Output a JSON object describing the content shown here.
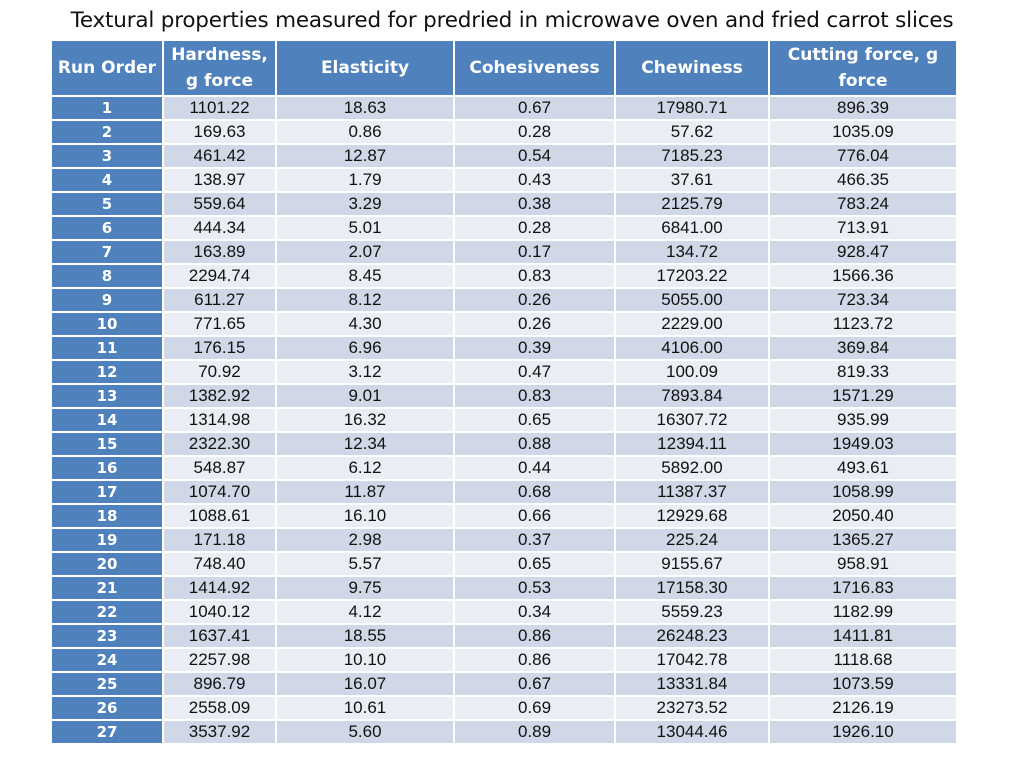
{
  "title": "Textural properties measured for predried in microwave oven and fried carrot slices",
  "colors": {
    "header_bg": "#4f81bd",
    "row_odd_bg": "#d0d8e8",
    "row_even_bg": "#e9edf4",
    "text": "#111111"
  },
  "table": {
    "headers": [
      "Run Order",
      "Hardness, g  force",
      "Elasticity",
      "Cohesiveness",
      "Chewiness",
      "Cutting force, g force"
    ],
    "rows": [
      [
        "1",
        "1101.22",
        "18.63",
        "0.67",
        "17980.71",
        "896.39"
      ],
      [
        "2",
        "169.63",
        "0.86",
        "0.28",
        "57.62",
        "1035.09"
      ],
      [
        "3",
        "461.42",
        "12.87",
        "0.54",
        "7185.23",
        "776.04"
      ],
      [
        "4",
        "138.97",
        "1.79",
        "0.43",
        "37.61",
        "466.35"
      ],
      [
        "5",
        "559.64",
        "3.29",
        "0.38",
        "2125.79",
        "783.24"
      ],
      [
        "6",
        "444.34",
        "5.01",
        "0.28",
        "6841.00",
        "713.91"
      ],
      [
        "7",
        "163.89",
        "2.07",
        "0.17",
        "134.72",
        "928.47"
      ],
      [
        "8",
        "2294.74",
        "8.45",
        "0.83",
        "17203.22",
        "1566.36"
      ],
      [
        "9",
        "611.27",
        "8.12",
        "0.26",
        "5055.00",
        "723.34"
      ],
      [
        "10",
        "771.65",
        "4.30",
        "0.26",
        "2229.00",
        "1123.72"
      ],
      [
        "11",
        "176.15",
        "6.96",
        "0.39",
        "4106.00",
        "369.84"
      ],
      [
        "12",
        "70.92",
        "3.12",
        "0.47",
        "100.09",
        "819.33"
      ],
      [
        "13",
        "1382.92",
        "9.01",
        "0.83",
        "7893.84",
        "1571.29"
      ],
      [
        "14",
        "1314.98",
        "16.32",
        "0.65",
        "16307.72",
        "935.99"
      ],
      [
        "15",
        "2322.30",
        "12.34",
        "0.88",
        "12394.11",
        "1949.03"
      ],
      [
        "16",
        "548.87",
        "6.12",
        "0.44",
        "5892.00",
        "493.61"
      ],
      [
        "17",
        "1074.70",
        "11.87",
        "0.68",
        "11387.37",
        "1058.99"
      ],
      [
        "18",
        "1088.61",
        "16.10",
        "0.66",
        "12929.68",
        "2050.40"
      ],
      [
        "19",
        "171.18",
        "2.98",
        "0.37",
        "225.24",
        "1365.27"
      ],
      [
        "20",
        "748.40",
        "5.57",
        "0.65",
        "9155.67",
        "958.91"
      ],
      [
        "21",
        "1414.92",
        "9.75",
        "0.53",
        "17158.30",
        "1716.83"
      ],
      [
        "22",
        "1040.12",
        "4.12",
        "0.34",
        "5559.23",
        "1182.99"
      ],
      [
        "23",
        "1637.41",
        "18.55",
        "0.86",
        "26248.23",
        "1411.81"
      ],
      [
        "24",
        "2257.98",
        "10.10",
        "0.86",
        "17042.78",
        "1118.68"
      ],
      [
        "25",
        "896.79",
        "16.07",
        "0.67",
        "13331.84",
        "1073.59"
      ],
      [
        "26",
        "2558.09",
        "10.61",
        "0.69",
        "23273.52",
        "2126.19"
      ],
      [
        "27",
        "3537.92",
        "5.60",
        "0.89",
        "13044.46",
        "1926.10"
      ]
    ]
  }
}
